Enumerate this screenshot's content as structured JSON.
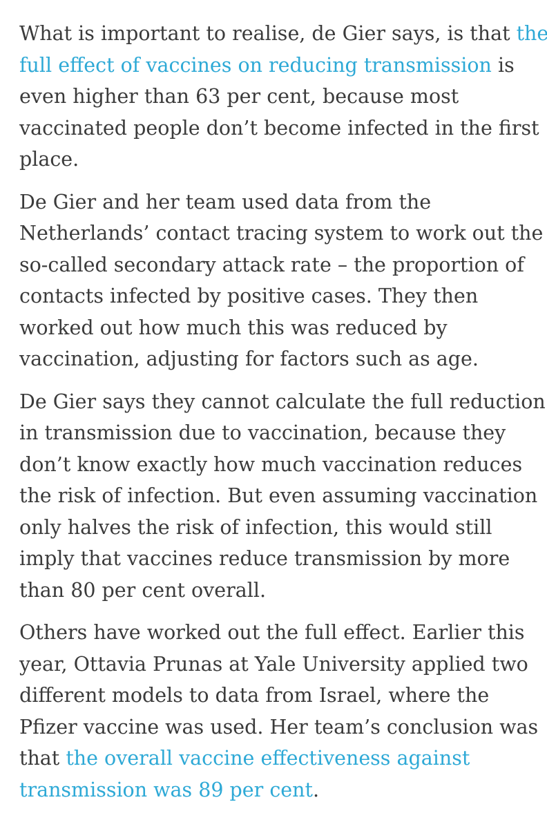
{
  "article": {
    "paragraphs": [
      {
        "lines": [
          [
            {
              "text": "What is important to realise, de Gier says, is that "
            },
            {
              "text": "the",
              "link": true
            }
          ],
          [
            {
              "text": "full effect of vaccines on reducing transmission",
              "link": true
            },
            {
              "text": " is"
            }
          ],
          [
            {
              "text": "even higher than 63 per cent, because most"
            }
          ],
          [
            {
              "text": "vaccinated people don’t become infected in the first"
            }
          ],
          [
            {
              "text": "place."
            }
          ]
        ]
      },
      {
        "lines": [
          [
            {
              "text": "De Gier and her team used data from the"
            }
          ],
          [
            {
              "text": "Netherlands’ contact tracing system to work out the"
            }
          ],
          [
            {
              "text": "so-called secondary attack rate – the proportion of"
            }
          ],
          [
            {
              "text": "contacts infected by positive cases. They then"
            }
          ],
          [
            {
              "text": "worked out how much this was reduced by"
            }
          ],
          [
            {
              "text": "vaccination, adjusting for factors such as age."
            }
          ]
        ]
      },
      {
        "lines": [
          [
            {
              "text": "De Gier says they cannot calculate the full reduction"
            }
          ],
          [
            {
              "text": "in transmission due to vaccination, because they"
            }
          ],
          [
            {
              "text": "don’t know exactly how much vaccination reduces"
            }
          ],
          [
            {
              "text": "the risk of infection. But even assuming vaccination"
            }
          ],
          [
            {
              "text": "only halves the risk of infection, this would still"
            }
          ],
          [
            {
              "text": "imply that vaccines reduce transmission by more"
            }
          ],
          [
            {
              "text": "than 80 per cent overall."
            }
          ]
        ]
      },
      {
        "lines": [
          [
            {
              "text": "Others have worked out the full effect. Earlier this"
            }
          ],
          [
            {
              "text": "year, Ottavia Prunas at Yale University applied two"
            }
          ],
          [
            {
              "text": "different models to data from Israel, where the"
            }
          ],
          [
            {
              "text": "Pfizer vaccine was used. Her team’s conclusion was"
            }
          ],
          [
            {
              "text": "that "
            },
            {
              "text": "the overall vaccine effectiveness against",
              "link": true
            }
          ],
          [
            {
              "text": "transmission was 89 per cent",
              "link": true
            },
            {
              "text": "."
            }
          ]
        ]
      }
    ]
  },
  "colors": {
    "text": "#3b3b3b",
    "link": "#2ea9d6",
    "background": "#ffffff"
  }
}
